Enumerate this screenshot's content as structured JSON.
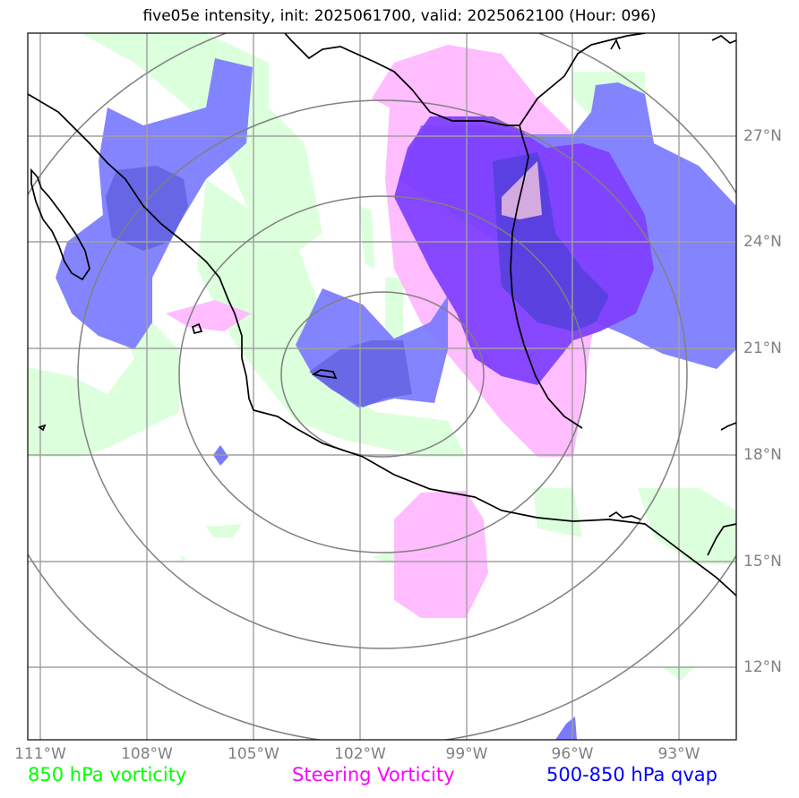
{
  "title": "five05e intensity, init: 2025061700, valid: 2025062100 (Hour: 096)",
  "map": {
    "lon_ticks": [
      "111°W",
      "108°W",
      "105°W",
      "102°W",
      "99°W",
      "96°W",
      "93°W"
    ],
    "lat_ticks": [
      "27°N",
      "24°N",
      "21°N",
      "18°N",
      "15°N",
      "12°N"
    ]
  },
  "legend": {
    "vorticity_850": {
      "label": "850 hPa vorticity",
      "color": "#00ff00"
    },
    "steering": {
      "label": "Steering Vorticity",
      "color": "#ff00ff"
    },
    "qvap": {
      "label": "500-850 hPa qvap",
      "color": "#0000ff"
    }
  },
  "colors": {
    "vorticity_fill": "#dcffdc",
    "steering_fill": "#ffbcff",
    "qvap_fill": "#7a7aff",
    "qvap_dark_fill": "#8040ff",
    "grid": "#a0a0a0",
    "range_rings": "#808080",
    "coastline": "#000000"
  }
}
